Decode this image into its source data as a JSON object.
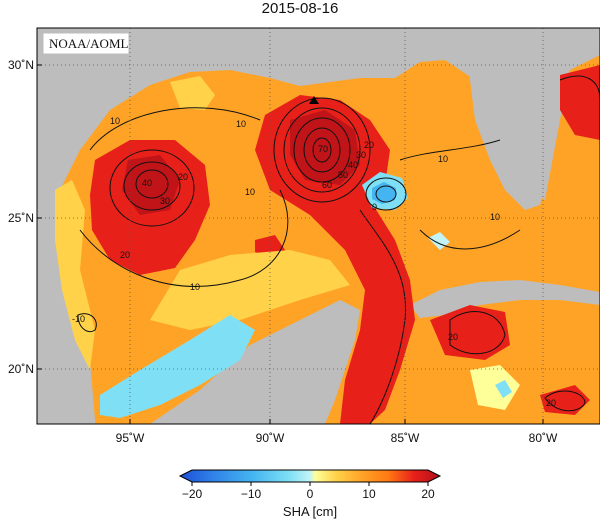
{
  "title": "2015-08-16",
  "source_label": "NOAA/AOML",
  "map": {
    "lon_ticks": [
      "95˚W",
      "90˚W",
      "85˚W",
      "80˚W"
    ],
    "lat_ticks": [
      "30˚N",
      "25˚N",
      "20˚N"
    ],
    "contour_labels": [
      "10",
      "10",
      "10",
      "10",
      "10",
      "20",
      "20",
      "20",
      "30",
      "40",
      "70",
      "60",
      "50",
      "40",
      "30",
      "20",
      "0",
      "20",
      "10",
      "-10"
    ],
    "marker_icon": "triangle-marker-icon"
  },
  "colorbar": {
    "ticks": [
      "−20",
      "−10",
      "0",
      "10",
      "20"
    ],
    "title": "SHA [cm]",
    "colors": [
      "#1d4fd8",
      "#2f7fe8",
      "#44b5f0",
      "#7fe0f5",
      "#c2f3f7",
      "#ffff9a",
      "#ffd24a",
      "#ffa326",
      "#ff7a14",
      "#f04a10",
      "#e8201a",
      "#b0101a"
    ]
  }
}
